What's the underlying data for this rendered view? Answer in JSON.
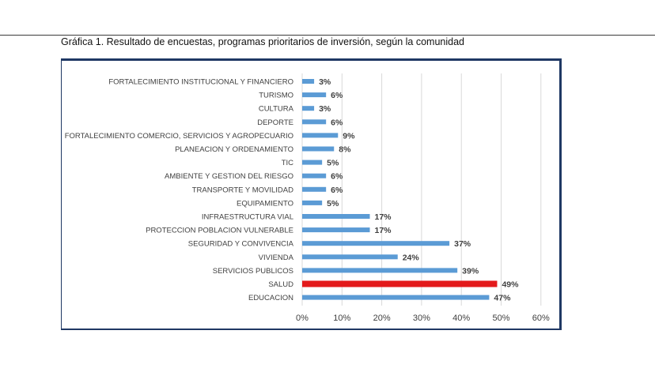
{
  "caption": "Gráfica 1. Resultado de encuestas, programas prioritarios de inversión, según la comunidad",
  "chart_data": {
    "type": "bar",
    "orientation": "horizontal",
    "title": "",
    "xlabel": "",
    "ylabel": "",
    "xlim": [
      0,
      60
    ],
    "x_ticks": [
      "0%",
      "10%",
      "20%",
      "30%",
      "40%",
      "50%",
      "60%"
    ],
    "grid": "vertical",
    "legend": "none",
    "colors": {
      "default": "#5b9bd5",
      "highlight": "#e31a1c"
    },
    "highlight_category": "SALUD",
    "categories": [
      "FORTALECIMIENTO INSTITUCIONAL Y FINANCIERO",
      "TURISMO",
      "CULTURA",
      "DEPORTE",
      "FORTALECIMIENTO COMERCIO, SERVICIOS Y AGROPECUARIO",
      "PLANEACION Y ORDENAMIENTO",
      "TIC",
      "AMBIENTE Y GESTION DEL RIESGO",
      "TRANSPORTE Y MOVILIDAD",
      "EQUIPAMIENTO",
      "INFRAESTRUCTURA VIAL",
      "PROTECCION POBLACION VULNERABLE",
      "SEGURIDAD Y CONVIVENCIA",
      "VIVIENDA",
      "SERVICIOS PUBLICOS",
      "SALUD",
      "EDUCACION"
    ],
    "values": [
      3,
      6,
      3,
      6,
      9,
      8,
      5,
      6,
      6,
      5,
      17,
      17,
      37,
      24,
      39,
      49,
      47
    ],
    "data_labels": [
      "3%",
      "6%",
      "3%",
      "6%",
      "9%",
      "8%",
      "5%",
      "6%",
      "6%",
      "5%",
      "17%",
      "17%",
      "37%",
      "24%",
      "39%",
      "49%",
      "47%"
    ]
  }
}
